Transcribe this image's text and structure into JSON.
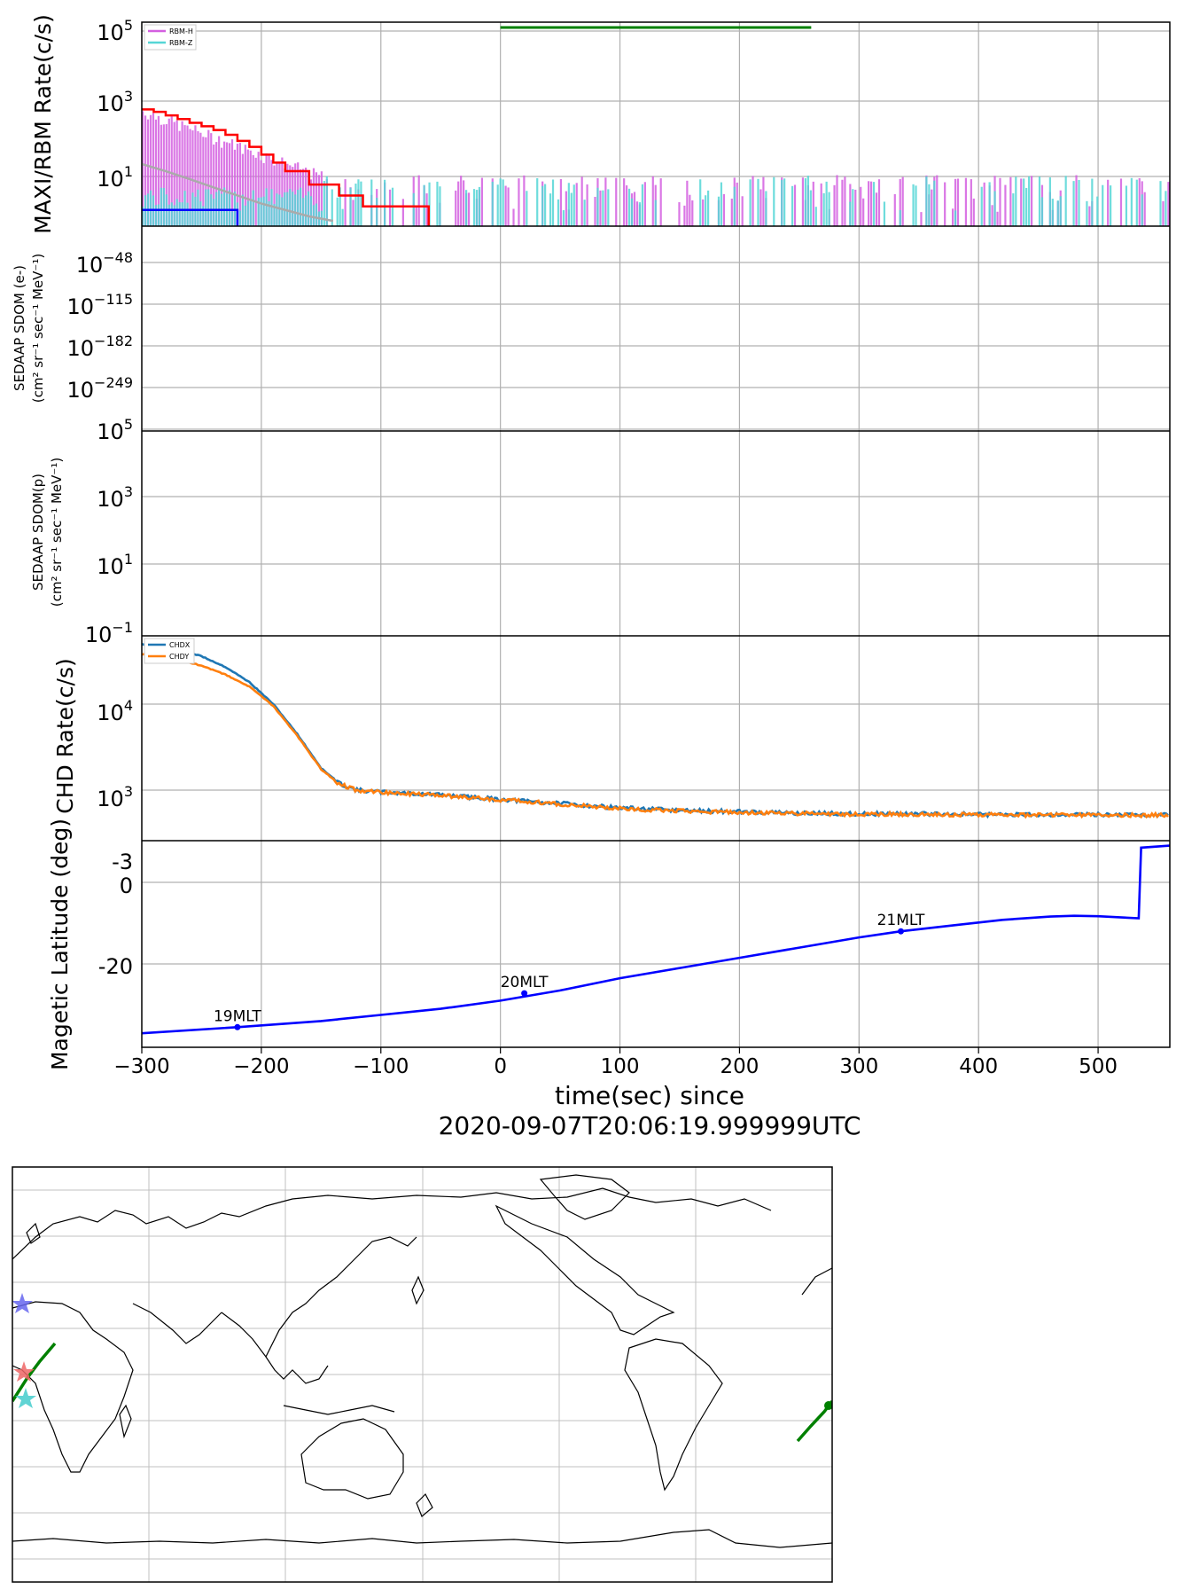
{
  "chart_data": [
    {
      "type": "line",
      "ylabel": "MAXI/RBM Rate(c/s)",
      "yscale": "log",
      "y_tick_labels": [
        "10^5",
        "10^3",
        "10^1"
      ],
      "legend": {
        "placement": "top-left",
        "entries": [
          "RBM-H",
          "RBM-Z"
        ]
      },
      "grid": true,
      "annotations": [
        {
          "name": "green-bar",
          "x": [
            0,
            260
          ],
          "y": 130000,
          "color": "#008000"
        }
      ],
      "series": [
        {
          "name": "RBM-H",
          "color": "#d45fe0",
          "style": "histogram-noisy"
        },
        {
          "name": "RBM-Z",
          "color": "#55d6d6",
          "style": "histogram-noisy"
        },
        {
          "color": "#ff0000",
          "style": "step",
          "x": [
            -300,
            -290,
            -280,
            -270,
            -260,
            -250,
            -240,
            -230,
            -220,
            -210,
            -200,
            -190,
            -180,
            -160,
            -135,
            -115,
            -60
          ],
          "y": [
            700,
            600,
            480,
            380,
            300,
            240,
            190,
            140,
            95,
            65,
            40,
            24,
            14,
            6,
            3,
            1.5,
            1
          ]
        },
        {
          "color": "#aaaaaa",
          "style": "line",
          "x": [
            -300,
            -280,
            -260,
            -240,
            -220,
            -200,
            -180,
            -160,
            -140
          ],
          "y": [
            22,
            14,
            8.5,
            5,
            3,
            1.8,
            1.2,
            0.8,
            0.6
          ]
        },
        {
          "color": "#0000ff",
          "style": "step",
          "x": [
            -300,
            -220
          ],
          "y": [
            1.2,
            1.2
          ]
        }
      ]
    },
    {
      "type": "line",
      "ylabel_lines": [
        "SEDAAP SDOM (e-)",
        "(cm² sr⁻¹ sec⁻¹ MeV⁻¹)"
      ],
      "yscale": "log",
      "y_tick_labels": [
        "10^-48",
        "10^-115",
        "10^-182",
        "10^-249"
      ],
      "grid": true,
      "series": []
    },
    {
      "type": "line",
      "ylabel_lines": [
        "SEDAAP SDOM(p)",
        "(cm² sr⁻¹ sec⁻¹ MeV⁻¹)"
      ],
      "yscale": "log",
      "y_tick_labels": [
        "10^5",
        "10^3",
        "10^1",
        "10^-1"
      ],
      "grid": true,
      "series": []
    },
    {
      "type": "line",
      "ylabel": "CHD Rate(c/s)",
      "yscale": "log",
      "y_tick_labels": [
        "10^4",
        "10^3"
      ],
      "legend": {
        "placement": "top-left",
        "entries": [
          "CHDX",
          "CHDY"
        ]
      },
      "grid": true,
      "series": [
        {
          "name": "CHDX",
          "color": "#1f77b4",
          "x": [
            -300,
            -270,
            -250,
            -230,
            -210,
            -190,
            -170,
            -150,
            -135,
            -120,
            -100,
            -50,
            0,
            50,
            100,
            150,
            200,
            250,
            300,
            350,
            400,
            450,
            500,
            560
          ],
          "y": [
            50000,
            43000,
            36000,
            27000,
            18000,
            10000,
            4500,
            1800,
            1200,
            1000,
            950,
            880,
            780,
            700,
            620,
            580,
            560,
            540,
            530,
            530,
            520,
            520,
            520,
            515
          ]
        },
        {
          "name": "CHDY",
          "color": "#ff7f0e",
          "x": [
            -300,
            -270,
            -250,
            -230,
            -210,
            -190,
            -170,
            -150,
            -135,
            -120,
            -100,
            -50,
            0,
            50,
            100,
            150,
            200,
            250,
            300,
            350,
            400,
            450,
            500,
            560
          ],
          "y": [
            38000,
            33000,
            28000,
            22000,
            16000,
            9500,
            4300,
            1750,
            1180,
            990,
            940,
            870,
            770,
            690,
            610,
            570,
            550,
            535,
            525,
            525,
            515,
            515,
            515,
            510
          ]
        }
      ]
    },
    {
      "type": "line",
      "ylabel": "Magetic Latitude  (deg)",
      "y_tick_labels": [
        "0",
        "-20"
      ],
      "ytick_values": [
        0,
        -20
      ],
      "cut_label": "-3",
      "xlabel": "time(sec) since",
      "xlabel2": "2020-09-07T20:06:19.999999UTC",
      "xlim": [
        -300,
        560
      ],
      "x_ticks": [
        -300,
        -200,
        -100,
        0,
        100,
        200,
        300,
        400,
        500
      ],
      "x_tick_labels": [
        "−300",
        "−200",
        "−100",
        "0",
        "100",
        "200",
        "300",
        "400",
        "500"
      ],
      "grid": true,
      "series": [
        {
          "color": "#0000ff",
          "x": [
            -300,
            -220,
            -150,
            -100,
            -50,
            0,
            50,
            100,
            150,
            200,
            250,
            300,
            335,
            380,
            420,
            460,
            480,
            500,
            520,
            534,
            536,
            560
          ],
          "y": [
            -37,
            -35.5,
            -34,
            -32.5,
            -31,
            -29,
            -26.5,
            -23.5,
            -21,
            -18.5,
            -16,
            -13.5,
            -12,
            -10.5,
            -9.2,
            -8.4,
            -8.2,
            -8.3,
            -8.6,
            -8.8,
            8.5,
            9
          ]
        }
      ],
      "markers": [
        {
          "x": -220,
          "y": -35.5,
          "label": "19MLT"
        },
        {
          "x": 20,
          "y": -27.2,
          "label": "20MLT"
        },
        {
          "x": 335,
          "y": -12,
          "label": "21MLT"
        }
      ]
    },
    {
      "type": "map",
      "grid": true,
      "track": {
        "color": "#008000"
      },
      "markers": [
        {
          "shape": "star",
          "color": "#6666ee"
        },
        {
          "shape": "star",
          "color": "#ee6666"
        },
        {
          "shape": "star",
          "color": "#44cccc"
        }
      ]
    }
  ]
}
